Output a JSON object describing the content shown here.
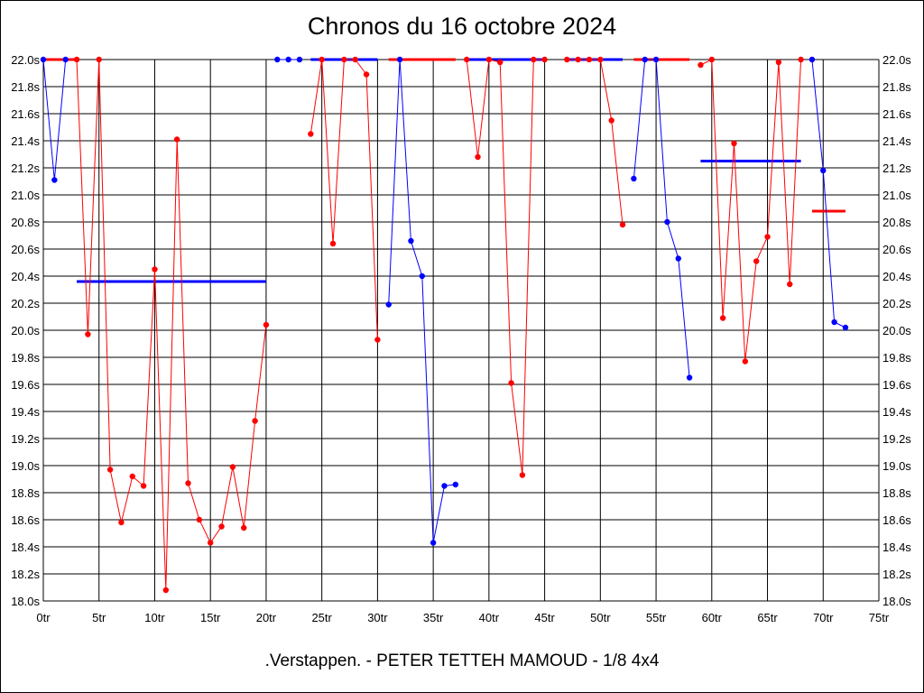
{
  "chart_data": {
    "type": "line",
    "title": "Chronos du 16 octobre 2024",
    "subtitle": ".Verstappen. - PETER TETTEH MAMOUD - 1/8 4x4",
    "xlim": [
      0,
      75
    ],
    "ylim": [
      18.0,
      22.0
    ],
    "x_ticks": [
      0,
      5,
      10,
      15,
      20,
      25,
      30,
      35,
      40,
      45,
      50,
      55,
      60,
      65,
      70,
      75
    ],
    "x_tick_labels": [
      "0tr",
      "5tr",
      "10tr",
      "15tr",
      "20tr",
      "25tr",
      "30tr",
      "35tr",
      "40tr",
      "45tr",
      "50tr",
      "55tr",
      "60tr",
      "65tr",
      "70tr",
      "75tr"
    ],
    "y_ticks": [
      18.0,
      18.2,
      18.4,
      18.6,
      18.8,
      19.0,
      19.2,
      19.4,
      19.6,
      19.8,
      20.0,
      20.2,
      20.4,
      20.6,
      20.8,
      21.0,
      21.2,
      21.4,
      21.6,
      21.8,
      22.0
    ],
    "y_tick_labels": [
      "18.0s",
      "18.2s",
      "18.4s",
      "18.6s",
      "18.8s",
      "19.0s",
      "19.2s",
      "19.4s",
      "19.6s",
      "19.8s",
      "20.0s",
      "20.2s",
      "20.4s",
      "20.6s",
      "20.8s",
      "21.0s",
      "21.2s",
      "21.4s",
      "21.6s",
      "21.8s",
      "22.0s"
    ],
    "grid": true,
    "series": [
      {
        "color": "#0000ff",
        "points": [
          [
            0,
            22.0
          ],
          [
            1,
            21.11
          ],
          [
            2,
            22.0
          ]
        ]
      },
      {
        "color": "#ff0000",
        "points": [
          [
            3,
            22.0
          ],
          [
            4,
            19.97
          ],
          [
            5,
            22.0
          ],
          [
            6,
            18.97
          ],
          [
            7,
            18.58
          ],
          [
            8,
            18.92
          ],
          [
            9,
            18.85
          ],
          [
            10,
            20.45
          ],
          [
            11,
            18.08
          ],
          [
            12,
            21.41
          ],
          [
            13,
            18.87
          ],
          [
            14,
            18.6
          ],
          [
            15,
            18.43
          ],
          [
            16,
            18.55
          ],
          [
            17,
            18.99
          ],
          [
            18,
            18.54
          ],
          [
            19,
            19.33
          ],
          [
            20,
            20.04
          ]
        ]
      },
      {
        "color": "#0000ff",
        "points": [
          [
            21,
            22.0
          ],
          [
            22,
            22.0
          ],
          [
            23,
            22.0
          ]
        ]
      },
      {
        "color": "#ff0000",
        "points": [
          [
            24,
            21.45
          ],
          [
            25,
            22.0
          ],
          [
            26,
            20.64
          ],
          [
            27,
            22.0
          ],
          [
            28,
            22.0
          ],
          [
            29,
            21.89
          ],
          [
            30,
            19.93
          ]
        ]
      },
      {
        "color": "#0000ff",
        "points": [
          [
            31,
            20.19
          ],
          [
            32,
            22.0
          ],
          [
            33,
            20.66
          ],
          [
            34,
            20.4
          ],
          [
            35,
            18.43
          ],
          [
            36,
            18.85
          ],
          [
            37,
            18.86
          ]
        ]
      },
      {
        "color": "#ff0000",
        "points": [
          [
            38,
            22.0
          ],
          [
            39,
            21.28
          ],
          [
            40,
            22.0
          ],
          [
            41,
            21.98
          ],
          [
            42,
            19.61
          ],
          [
            43,
            18.93
          ],
          [
            44,
            22.0
          ],
          [
            45,
            22.0
          ]
        ]
      },
      {
        "color": "#ff0000",
        "points": [
          [
            47,
            22.0
          ],
          [
            48,
            22.0
          ],
          [
            49,
            22.0
          ],
          [
            50,
            22.0
          ],
          [
            51,
            21.55
          ],
          [
            52,
            20.78
          ]
        ]
      },
      {
        "color": "#0000ff",
        "points": [
          [
            53,
            21.12
          ],
          [
            54,
            22.0
          ],
          [
            55,
            22.0
          ],
          [
            56,
            20.8
          ],
          [
            57,
            20.53
          ],
          [
            58,
            19.65
          ]
        ]
      },
      {
        "color": "#ff0000",
        "points": [
          [
            59,
            21.96
          ],
          [
            60,
            22.0
          ],
          [
            61,
            20.09
          ],
          [
            62,
            21.38
          ],
          [
            63,
            19.77
          ],
          [
            64,
            20.51
          ],
          [
            65,
            20.69
          ],
          [
            66,
            21.98
          ],
          [
            67,
            20.34
          ],
          [
            68,
            22.0
          ]
        ]
      },
      {
        "color": "#0000ff",
        "points": [
          [
            69,
            22.0
          ],
          [
            70,
            21.18
          ],
          [
            71,
            20.06
          ],
          [
            72,
            20.02
          ]
        ]
      }
    ],
    "segment_averages": [
      {
        "color": "#ff0000",
        "x": [
          0,
          3
        ],
        "y": 22.0
      },
      {
        "color": "#0000ff",
        "x": [
          3,
          20
        ],
        "y": 20.36
      },
      {
        "color": "#0000ff",
        "x": [
          24,
          30
        ],
        "y": 22.0
      },
      {
        "color": "#ff0000",
        "x": [
          31,
          37
        ],
        "y": 22.0
      },
      {
        "color": "#0000ff",
        "x": [
          38,
          45
        ],
        "y": 22.0
      },
      {
        "color": "#0000ff",
        "x": [
          47,
          52
        ],
        "y": 22.0
      },
      {
        "color": "#ff0000",
        "x": [
          53,
          58
        ],
        "y": 22.0
      },
      {
        "color": "#0000ff",
        "x": [
          59,
          68
        ],
        "y": 21.25
      },
      {
        "color": "#ff0000",
        "x": [
          69,
          72
        ],
        "y": 20.88
      }
    ]
  }
}
